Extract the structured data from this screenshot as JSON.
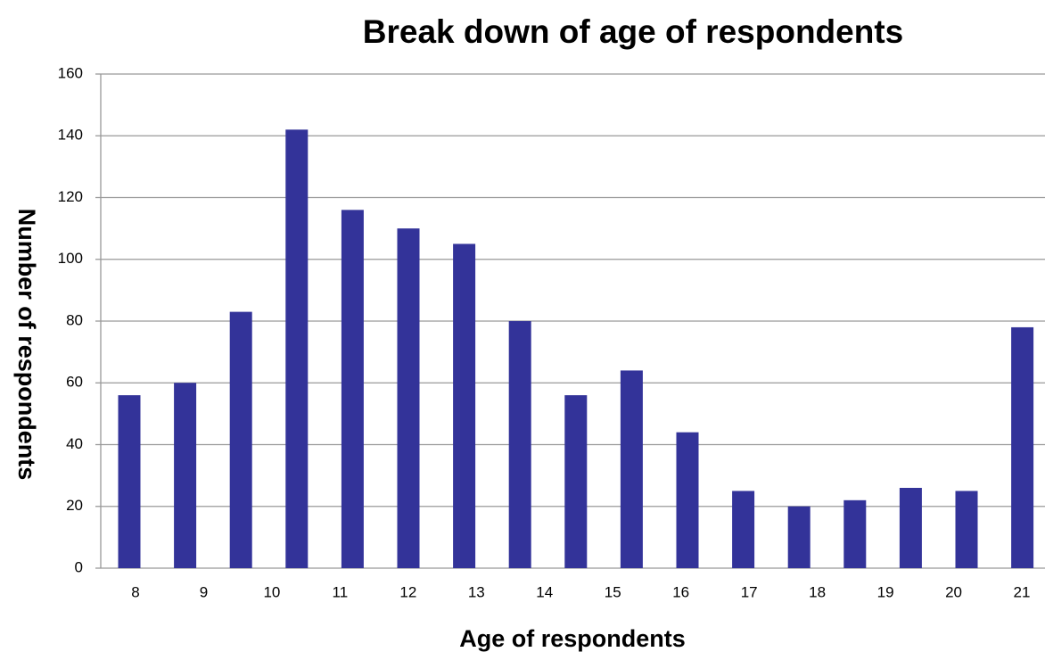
{
  "chart_data": {
    "type": "bar",
    "title": "Break down of age of respondents",
    "x_label": "Age of respondents",
    "y_label": "Number of respondents",
    "categories": [
      "8",
      "9",
      "10",
      null,
      "11",
      "12",
      "13",
      "14",
      null,
      "15",
      "16",
      "17",
      "18",
      null,
      "19",
      "20",
      "21"
    ],
    "values": [
      56,
      60,
      83,
      142,
      116,
      110,
      105,
      80,
      56,
      64,
      44,
      25,
      20,
      22,
      26,
      25,
      78
    ],
    "color": "#333399",
    "ylim": [
      0,
      160
    ],
    "yticks": [
      0,
      20,
      40,
      60,
      80,
      100,
      120,
      140,
      160
    ],
    "grid": true
  }
}
